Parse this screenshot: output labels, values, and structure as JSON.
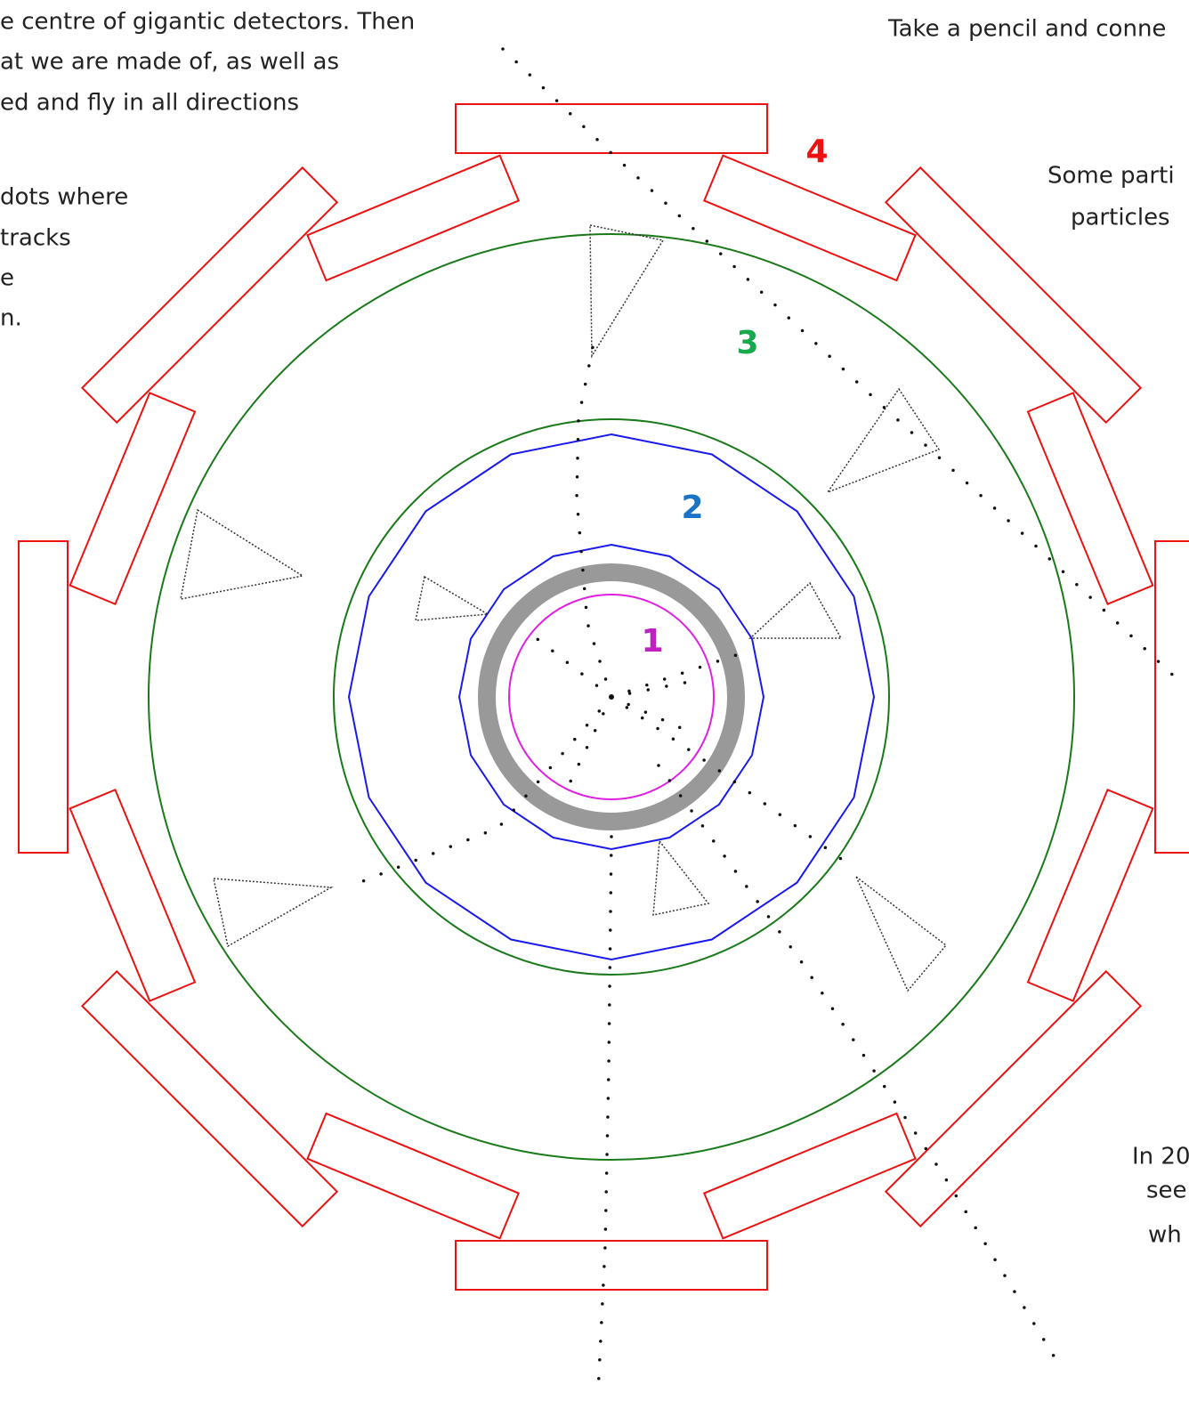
{
  "text": {
    "top_left": [
      "e centre of gigantic  detectors. Then",
      "at we are made of, as well as",
      "ed and fly in all directions"
    ],
    "left": [
      "dots where",
      "tracks",
      "e",
      "n."
    ],
    "top_right": [
      "Take a pencil and conne"
    ],
    "right": [
      "Some parti",
      "particles"
    ],
    "bottom_right": [
      "In 20",
      "see",
      "wh"
    ]
  },
  "labels": [
    "1",
    "2",
    "3",
    "4"
  ]
}
